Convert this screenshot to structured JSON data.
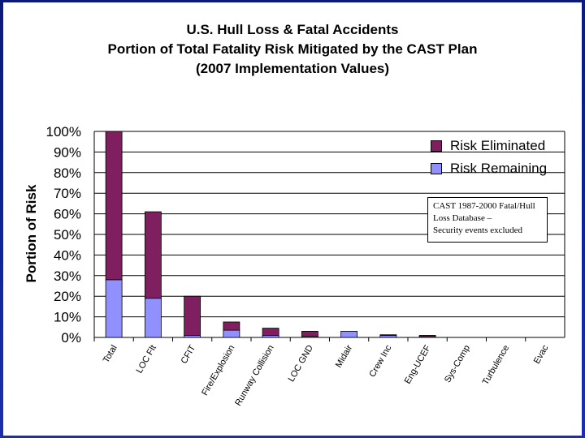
{
  "title": {
    "line1": "U.S. Hull Loss & Fatal Accidents",
    "line2": "Portion of Total Fatality Risk Mitigated by the CAST  Plan",
    "line3": "(2007 Implementation Values)"
  },
  "note": {
    "line1": "CAST 1987-2000 Fatal/Hull",
    "line2": "Loss Database –",
    "line3": "Security events excluded"
  },
  "colors": {
    "eliminated": "#7f1f5f",
    "remaining": "#9090ff",
    "grid": "#000000"
  },
  "chart_data": {
    "type": "bar",
    "stacked": true,
    "ylabel": "Portion of Risk",
    "ylim": [
      0,
      100
    ],
    "yticks": [
      "0%",
      "10%",
      "20%",
      "30%",
      "40%",
      "50%",
      "60%",
      "70%",
      "80%",
      "90%",
      "100%"
    ],
    "categories": [
      "Total",
      "LOC Flt",
      "CFIT",
      "Fire/Explosion",
      "Runway Collision",
      "LOC GND",
      "Midair",
      "Crew Inc",
      "Eng-UCEF",
      "Sys-Comp",
      "Turbulence",
      "Evac"
    ],
    "series": [
      {
        "name": "Risk Remaining",
        "values": [
          28,
          19,
          1,
          3.5,
          1,
          0.5,
          3,
          1,
          0.5,
          0,
          0,
          0
        ]
      },
      {
        "name": "Risk Eliminated",
        "values": [
          72,
          42,
          19,
          4,
          3.5,
          2.5,
          0,
          0.3,
          0.5,
          0,
          0,
          0
        ]
      }
    ],
    "legend": [
      "Risk Eliminated",
      "Risk Remaining"
    ],
    "legend_position": "top-right"
  }
}
